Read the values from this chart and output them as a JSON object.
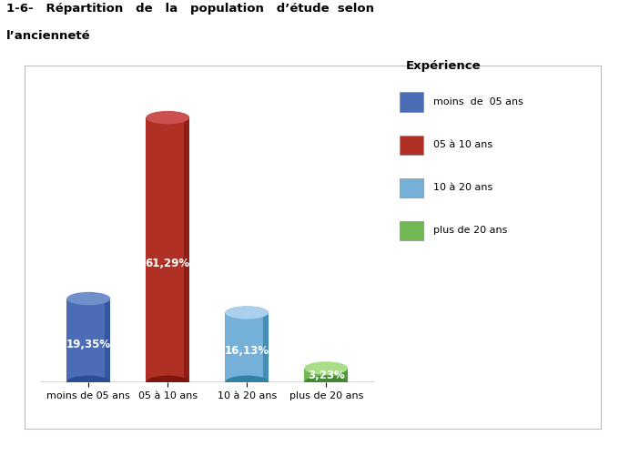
{
  "categories": [
    "moins de 05 ans",
    "05 à 10 ans",
    "10 à 20 ans",
    "plus de 20 ans"
  ],
  "values": [
    19.35,
    61.29,
    16.13,
    3.23
  ],
  "labels": [
    "19,35%",
    "61,29%",
    "16,13%",
    "3,23%"
  ],
  "colors_top": [
    "#7090cc",
    "#cc5050",
    "#aad0ee",
    "#aadd88"
  ],
  "colors_body": [
    "#4a6db5",
    "#b03025",
    "#75b0d8",
    "#72b855"
  ],
  "colors_dark": [
    "#2a4d95",
    "#801510",
    "#3080a8",
    "#428832"
  ],
  "legend_title": "Expérience",
  "legend_labels": [
    "moins  de  05 ans",
    "05 à 10 ans",
    "10 à 20 ans",
    "plus de 20 ans"
  ],
  "legend_colors": [
    "#4a6db5",
    "#b03025",
    "#75b0d8",
    "#72b855"
  ],
  "title_line1": "1-6-   Répartition   de   la   population   d’étude  selon",
  "title_line2": "l’ancienneté",
  "background_color": "#ffffff",
  "bar_width": 0.55,
  "ylim": [
    0,
    68
  ]
}
